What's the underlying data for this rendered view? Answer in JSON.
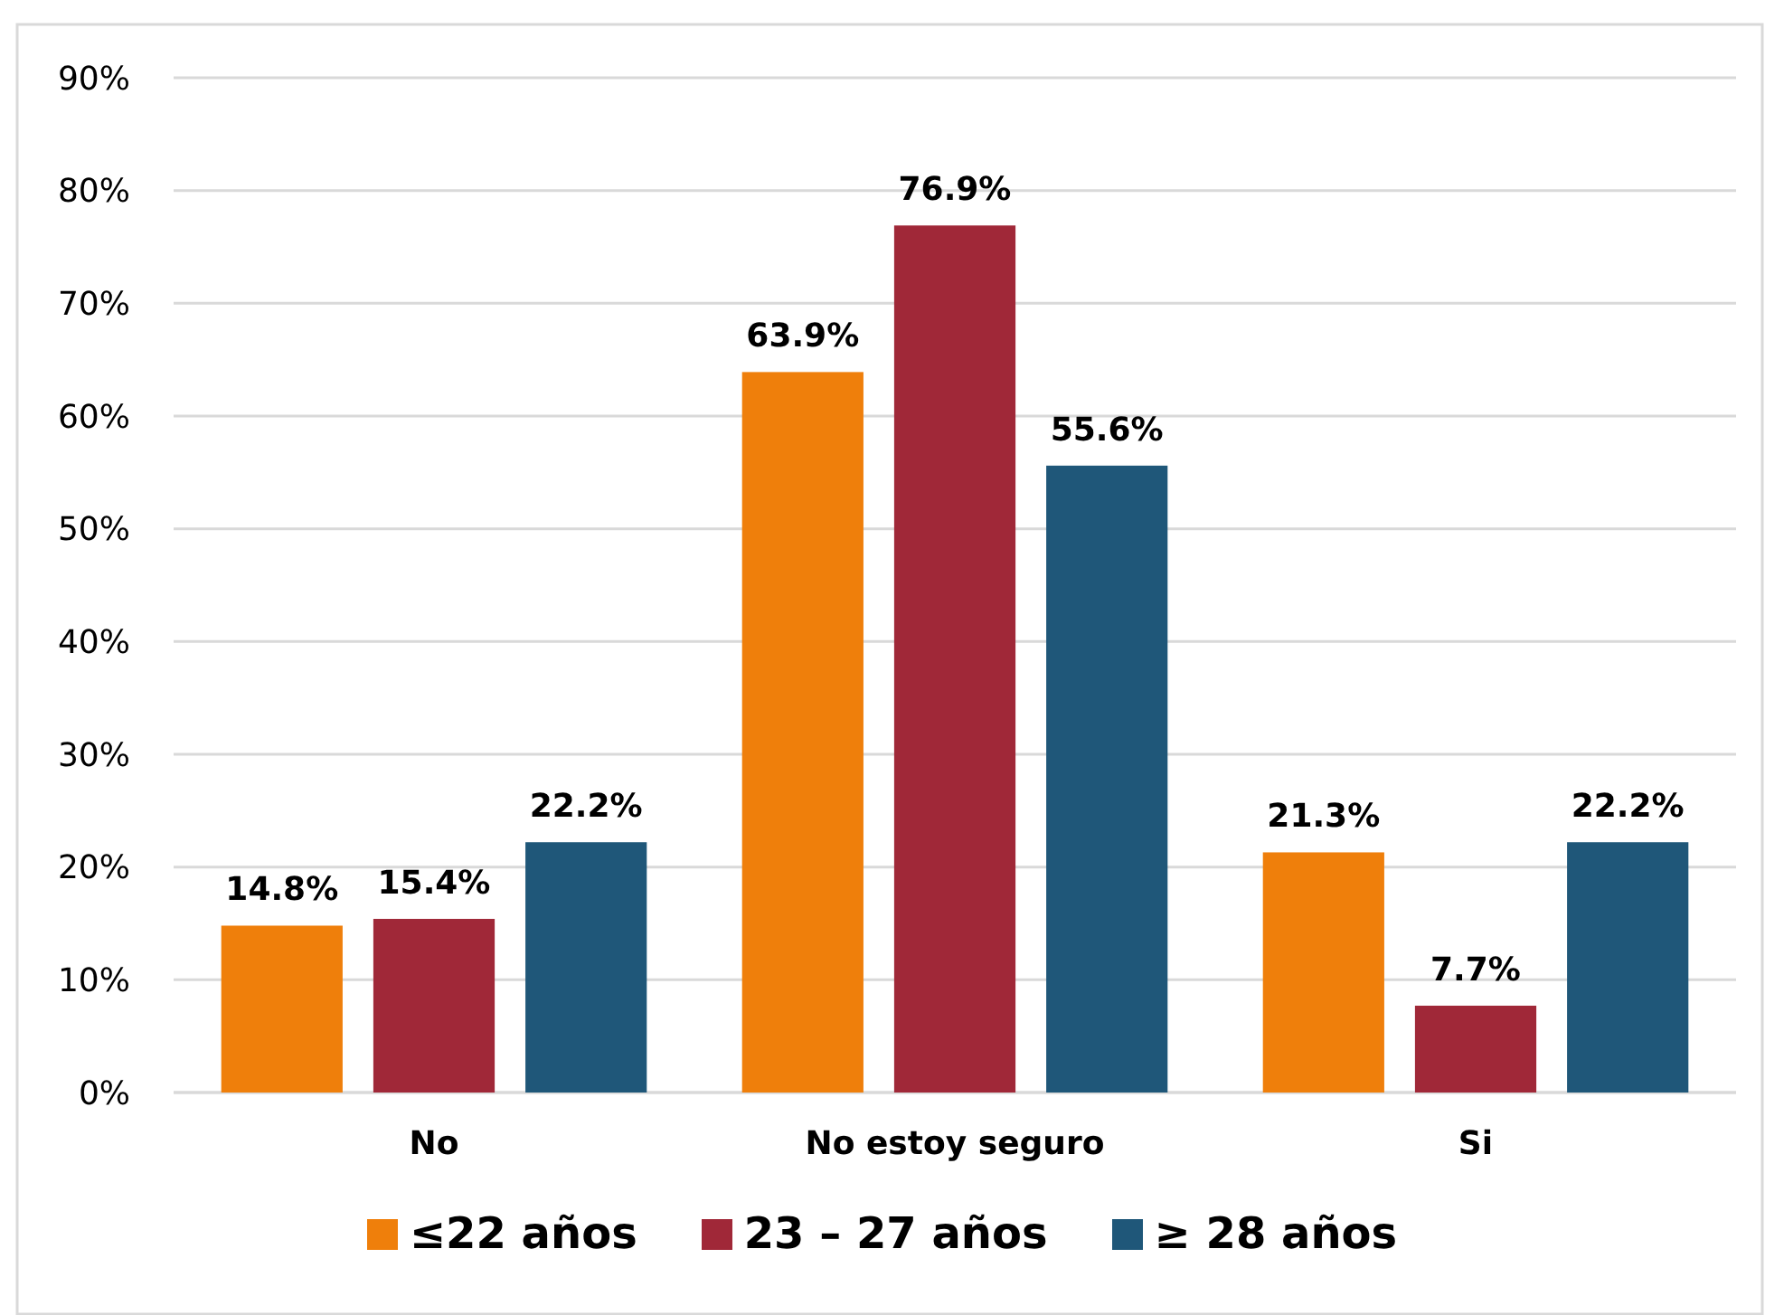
{
  "chart_data": {
    "type": "bar",
    "categories": [
      "No",
      "No estoy seguro",
      "Si"
    ],
    "series": [
      {
        "name": "≤22 años",
        "color": "#ef7f0b",
        "values": [
          14.8,
          63.9,
          21.3
        ],
        "value_labels": [
          "14.8%",
          "63.9%",
          "21.3%"
        ]
      },
      {
        "name": "23 – 27 años",
        "color": "#a02838",
        "values": [
          15.4,
          76.9,
          7.7
        ],
        "value_labels": [
          "15.4%",
          "76.9%",
          "7.7%"
        ]
      },
      {
        "name": "≥ 28 años",
        "color": "#1f5779",
        "values": [
          22.2,
          55.6,
          22.2
        ],
        "value_labels": [
          "22.2%",
          "55.6%",
          "22.2%"
        ]
      }
    ],
    "ylim": [
      0,
      90
    ],
    "yticks": [
      {
        "value": 0,
        "label": "0%"
      },
      {
        "value": 10,
        "label": "10%"
      },
      {
        "value": 20,
        "label": "20%"
      },
      {
        "value": 30,
        "label": "30%"
      },
      {
        "value": 40,
        "label": "40%"
      },
      {
        "value": 50,
        "label": "50%"
      },
      {
        "value": 60,
        "label": "60%"
      },
      {
        "value": 70,
        "label": "70%"
      },
      {
        "value": 80,
        "label": "80%"
      },
      {
        "value": 90,
        "label": "90%"
      }
    ],
    "grid": "y",
    "legend": "bottom"
  }
}
